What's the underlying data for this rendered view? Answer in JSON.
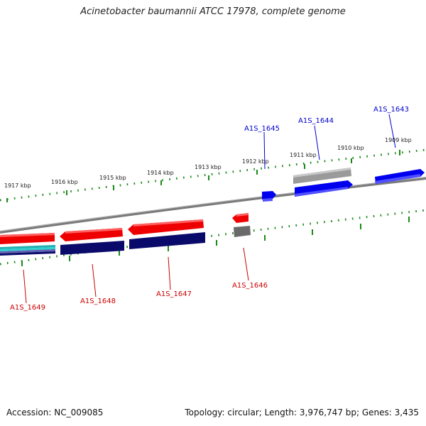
{
  "title": "Acinetobacter baumannii ATCC 17978, complete genome",
  "footer": {
    "accession": "Accession: NC_009085",
    "summary": "Topology: circular; Length: 3,976,747 bp; Genes: 3,435"
  },
  "scale_labels": [
    "1917 kbp",
    "1916 kbp",
    "1915 kbp",
    "1914 kbp",
    "1913 kbp",
    "1912 kbp",
    "1911 kbp",
    "1910 kbp",
    "1909 kbp"
  ],
  "gene_labels": {
    "top": [
      "A1S_1645",
      "A1S_1644",
      "A1S_1643"
    ],
    "bottom": [
      "A1S_1649",
      "A1S_1648",
      "A1S_1647",
      "A1S_1646"
    ]
  },
  "colors": {
    "backbone": "#808080",
    "ticks": "#1a8a1a",
    "forward_gene": "#0000ee",
    "reverse_gene": "#ee0000",
    "top_label": "#0000cc",
    "bottom_label": "#cc0000",
    "navy_track": "#0a0a6a",
    "gray_track": "#8a8a8a"
  }
}
